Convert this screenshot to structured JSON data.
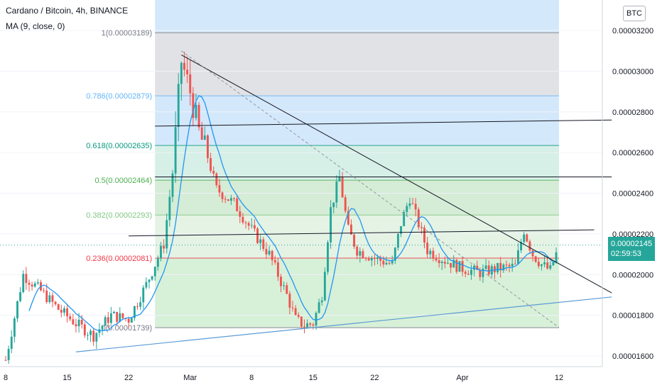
{
  "header": {
    "title": "Cardano / Bitcoin, 4h, BINANCE",
    "indicator": "MA (9, close, 0)"
  },
  "currency_badge": "BTC",
  "price_tag": {
    "price": "0.00002145",
    "countdown": "02:59:53",
    "color": "#26a69a"
  },
  "chart_data": {
    "type": "candlestick",
    "title": "Cardano / Bitcoin, 4h, BINANCE",
    "symbol": "ADA/BTC",
    "timeframe": "4h",
    "exchange": "BINANCE",
    "ylim": [
      1.55e-05,
      3.25e-05
    ],
    "y_ticks": [
      "0.00003200",
      "0.00003000",
      "0.00002800",
      "0.00002600",
      "0.00002400",
      "0.00002200",
      "0.00002000",
      "0.00001800",
      "0.00001600"
    ],
    "x_ticks": [
      "8",
      "15",
      "22",
      "Mar",
      "8",
      "15",
      "22",
      "Apr",
      "12"
    ],
    "x_tick_dates": [
      "2021-02-08",
      "2021-02-15",
      "2021-02-22",
      "2021-03-01",
      "2021-03-08",
      "2021-03-15",
      "2021-03-22",
      "2021-04-01",
      "2021-04-12"
    ],
    "close_series_dates": [
      "2021-02-08",
      "2021-02-10",
      "2021-02-12",
      "2021-02-14",
      "2021-02-16",
      "2021-02-18",
      "2021-02-20",
      "2021-02-22",
      "2021-02-24",
      "2021-02-26",
      "2021-02-27",
      "2021-02-28",
      "2021-03-01",
      "2021-03-02",
      "2021-03-03",
      "2021-03-04",
      "2021-03-06",
      "2021-03-08",
      "2021-03-10",
      "2021-03-12",
      "2021-03-13",
      "2021-03-14",
      "2021-03-15",
      "2021-03-16",
      "2021-03-17",
      "2021-03-18",
      "2021-03-19",
      "2021-03-20",
      "2021-03-22",
      "2021-03-24",
      "2021-03-25",
      "2021-03-26",
      "2021-03-28",
      "2021-03-30",
      "2021-04-01",
      "2021-04-03",
      "2021-04-05",
      "2021-04-07",
      "2021-04-08",
      "2021-04-09",
      "2021-04-10",
      "2021-04-11",
      "2021-04-12"
    ],
    "close_series": [
      1.58e-05,
      2e-05,
      1.92e-05,
      1.83e-05,
      1.76e-05,
      1.7e-05,
      1.8e-05,
      1.78e-05,
      1.95e-05,
      2.15e-05,
      2.5e-05,
      3.05e-05,
      2.9e-05,
      2.7e-05,
      2.58e-05,
      2.42e-05,
      2.35e-05,
      2.22e-05,
      2.1e-05,
      1.9e-05,
      1.78e-05,
      1.75e-05,
      1.76e-05,
      1.9e-05,
      2.32e-05,
      2.48e-05,
      2.22e-05,
      2.12e-05,
      2.08e-05,
      2.05e-05,
      2.25e-05,
      2.38e-05,
      2.12e-05,
      2.07e-05,
      2.03e-05,
      2.01e-05,
      2.03e-05,
      2.04e-05,
      2.22e-05,
      2.1e-05,
      2.05e-05,
      2.02e-05,
      2.14e-05
    ],
    "fibonacci": [
      {
        "label": "1(0.00003189)",
        "ratio": 1,
        "price": 3.189e-05,
        "color": "#787b86"
      },
      {
        "label": "0.786(0.00002879)",
        "ratio": 0.786,
        "price": 2.879e-05,
        "color": "#64b5f6"
      },
      {
        "label": "0.618(0.00002635)",
        "ratio": 0.618,
        "price": 2.635e-05,
        "color": "#089981"
      },
      {
        "label": "0.5(0.00002464)",
        "ratio": 0.5,
        "price": 2.464e-05,
        "color": "#4caf50"
      },
      {
        "label": "0.382(0.00002293)",
        "ratio": 0.382,
        "price": 2.293e-05,
        "color": "#81c784"
      },
      {
        "label": "0.236(0.00002081)",
        "ratio": 0.236,
        "price": 2.081e-05,
        "color": "#f23645"
      },
      {
        "label": "0(0.00001739)",
        "ratio": 0,
        "price": 1.739e-05,
        "color": "#787b86"
      }
    ],
    "last_price": 2.145e-05
  }
}
